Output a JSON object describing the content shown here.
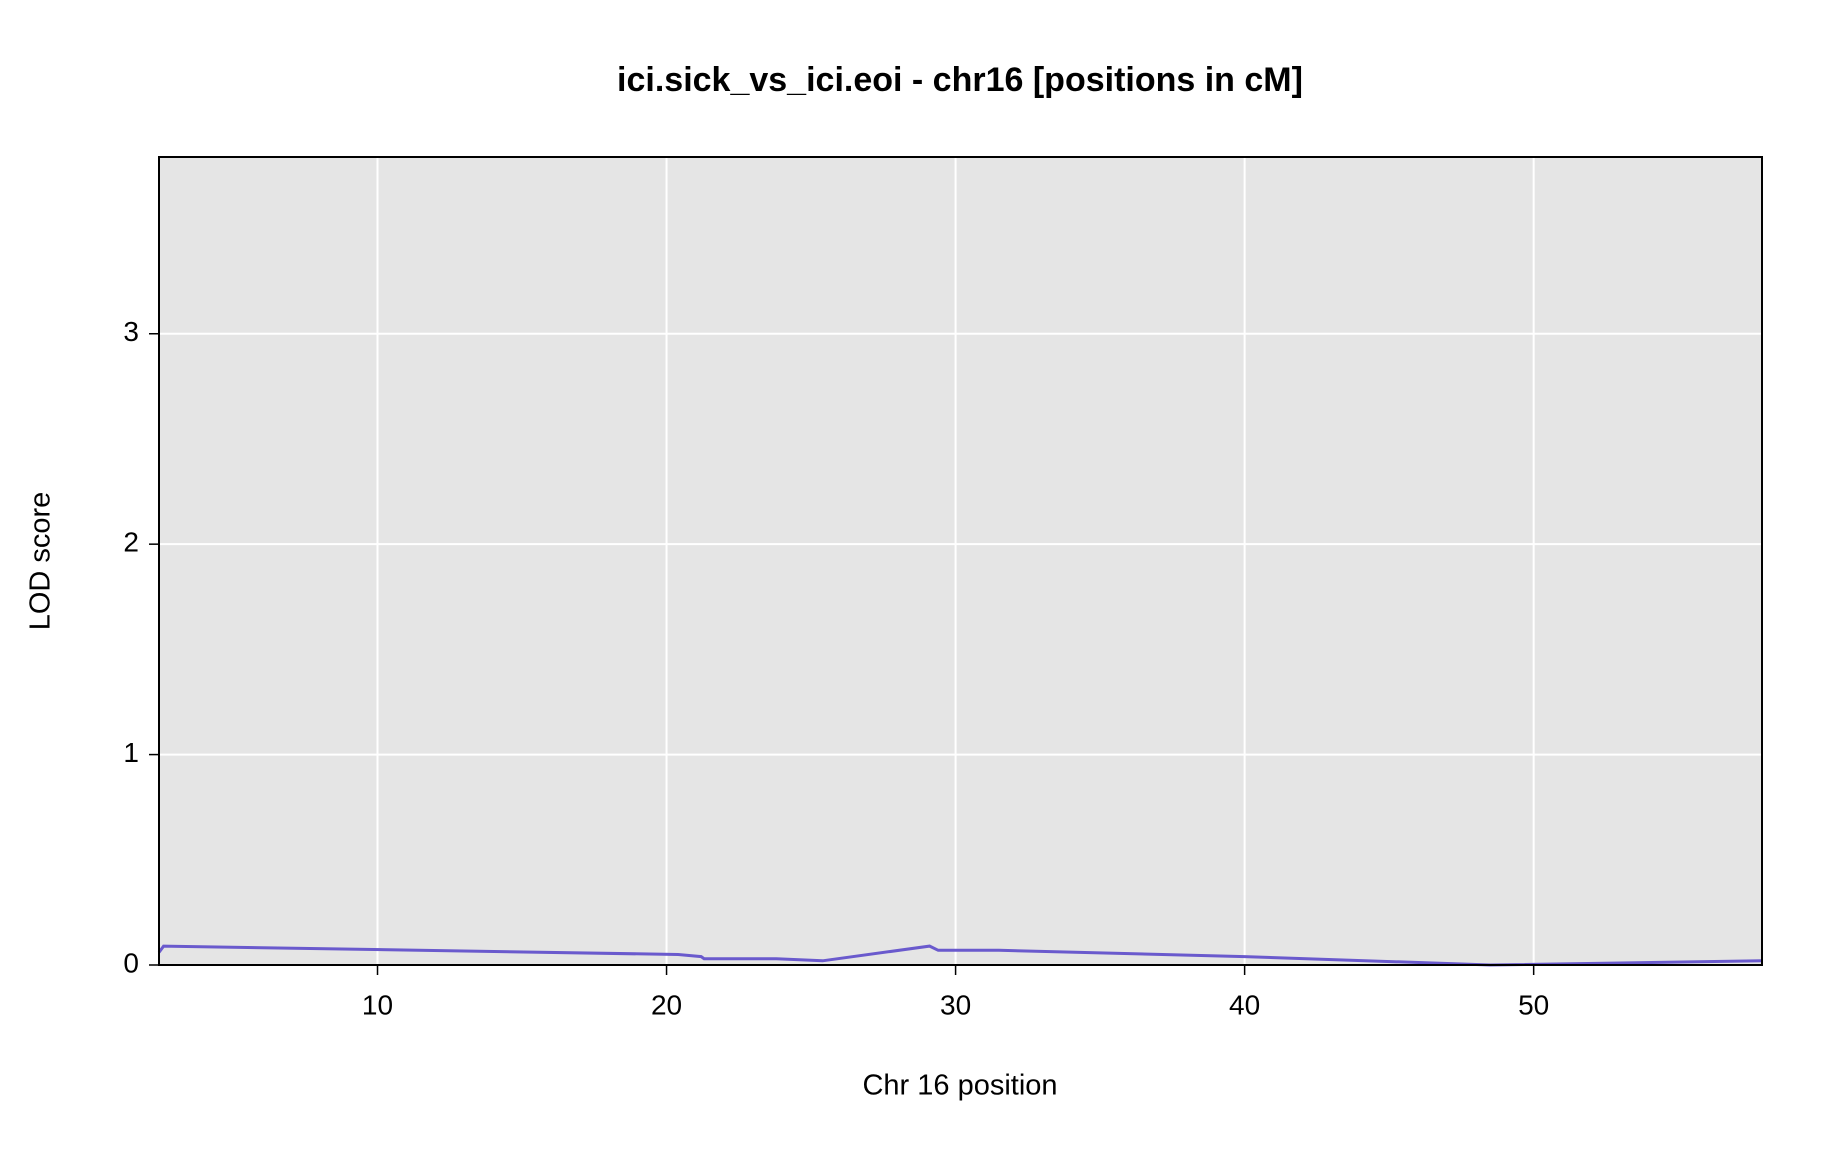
{
  "chart_data": {
    "type": "line",
    "title": "ici.sick_vs_ici.eoi - chr16 [positions in cM]",
    "x_label": "Chr 16 position",
    "y_label": "LOD score",
    "x": [
      2.44,
      2.6,
      20.4,
      21.2,
      21.3,
      23.8,
      25.4,
      29.1,
      29.4,
      31.5,
      40,
      48.5,
      57.9
    ],
    "series": [
      {
        "name": "LOD",
        "color": "#6a5acd",
        "values": [
          0.06,
          0.09,
          0.05,
          0.04,
          0.03,
          0.03,
          0.02,
          0.09,
          0.07,
          0.07,
          0.04,
          0.0,
          0.02
        ]
      }
    ],
    "xlim": [
      2.44,
      57.9
    ],
    "ylim": [
      0,
      3.84
    ],
    "xticks": [
      10,
      20,
      30,
      40,
      50
    ],
    "yticks": [
      0,
      1,
      2,
      3
    ],
    "grid": true,
    "background": "#e5e5e5"
  }
}
